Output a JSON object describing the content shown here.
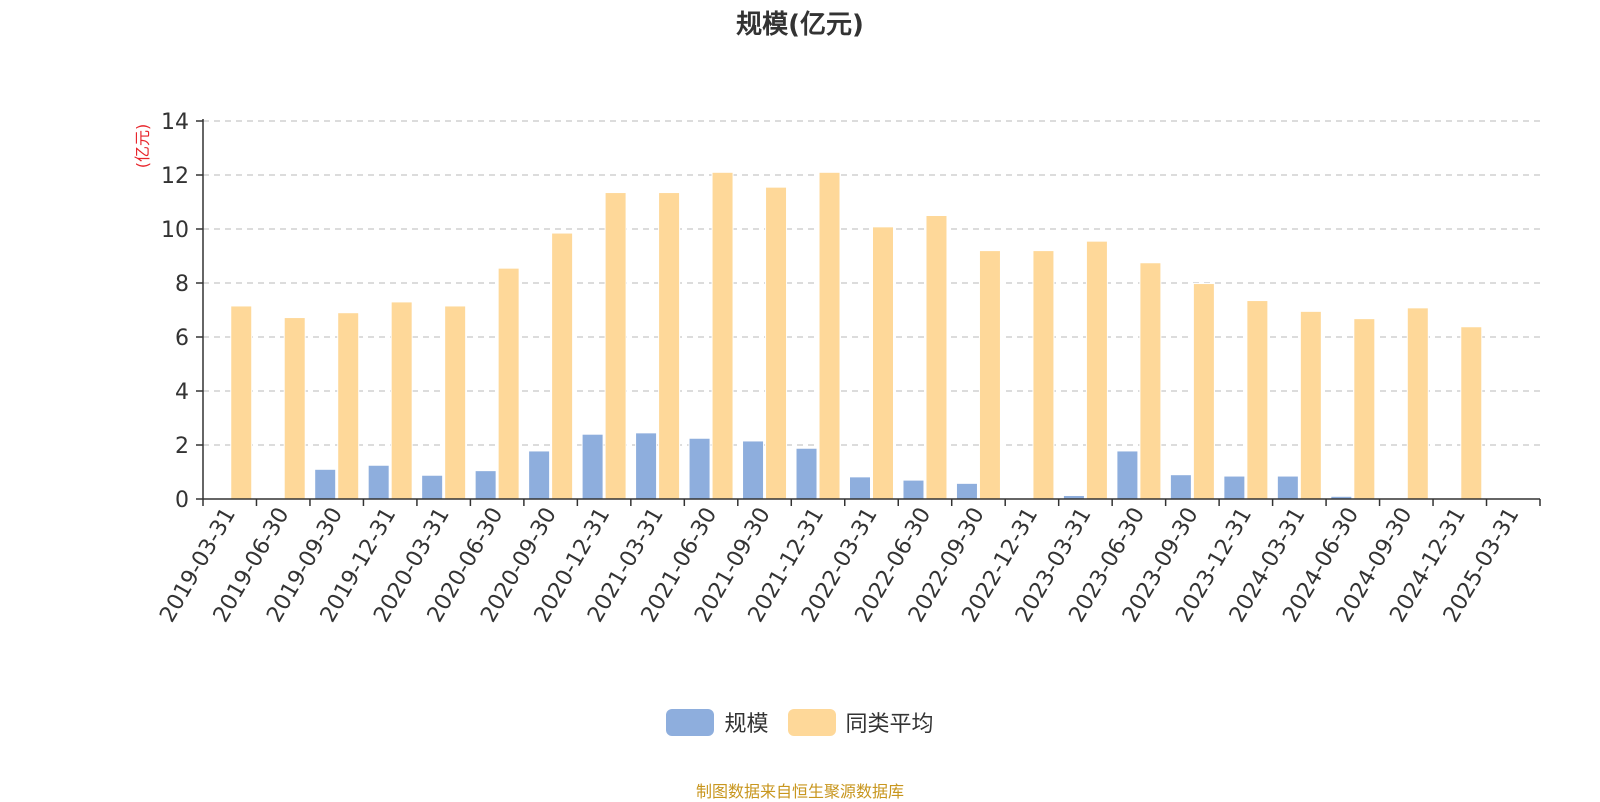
{
  "chart_data": {
    "type": "bar",
    "title": "规模(亿元)",
    "ylabel": "(亿元)",
    "ylim": [
      0,
      14
    ],
    "yticks": [
      0,
      2,
      4,
      6,
      8,
      10,
      12,
      14
    ],
    "grid": true,
    "legend_position": "bottom",
    "categories": [
      "2019-03-31",
      "2019-06-30",
      "2019-09-30",
      "2019-12-31",
      "2020-03-31",
      "2020-06-30",
      "2020-09-30",
      "2020-12-31",
      "2021-03-31",
      "2021-06-30",
      "2021-09-30",
      "2021-12-31",
      "2022-03-31",
      "2022-06-30",
      "2022-09-30",
      "2022-12-31",
      "2023-03-31",
      "2023-06-30",
      "2023-09-30",
      "2023-12-31",
      "2024-03-31",
      "2024-06-30",
      "2024-09-30",
      "2024-12-31",
      "2025-03-31"
    ],
    "series": [
      {
        "name": "规模",
        "color": "#8eaedd",
        "values": [
          0,
          0,
          1.1,
          1.25,
          0.88,
          1.05,
          1.78,
          2.4,
          2.45,
          2.25,
          2.15,
          1.88,
          0.82,
          0.7,
          0.58,
          0.02,
          0.13,
          1.78,
          0.9,
          0.85,
          0.85,
          0.1,
          0,
          0.02,
          0.03
        ]
      },
      {
        "name": "同类平均",
        "color": "#fed899",
        "values": [
          7.15,
          6.72,
          6.9,
          7.3,
          7.15,
          8.55,
          9.85,
          11.35,
          11.35,
          12.1,
          11.55,
          12.1,
          10.08,
          10.5,
          9.2,
          9.2,
          9.55,
          8.75,
          7.98,
          7.35,
          6.95,
          6.68,
          7.08,
          6.38,
          null
        ]
      }
    ],
    "source_note": "制图数据来自恒生聚源数据库"
  }
}
